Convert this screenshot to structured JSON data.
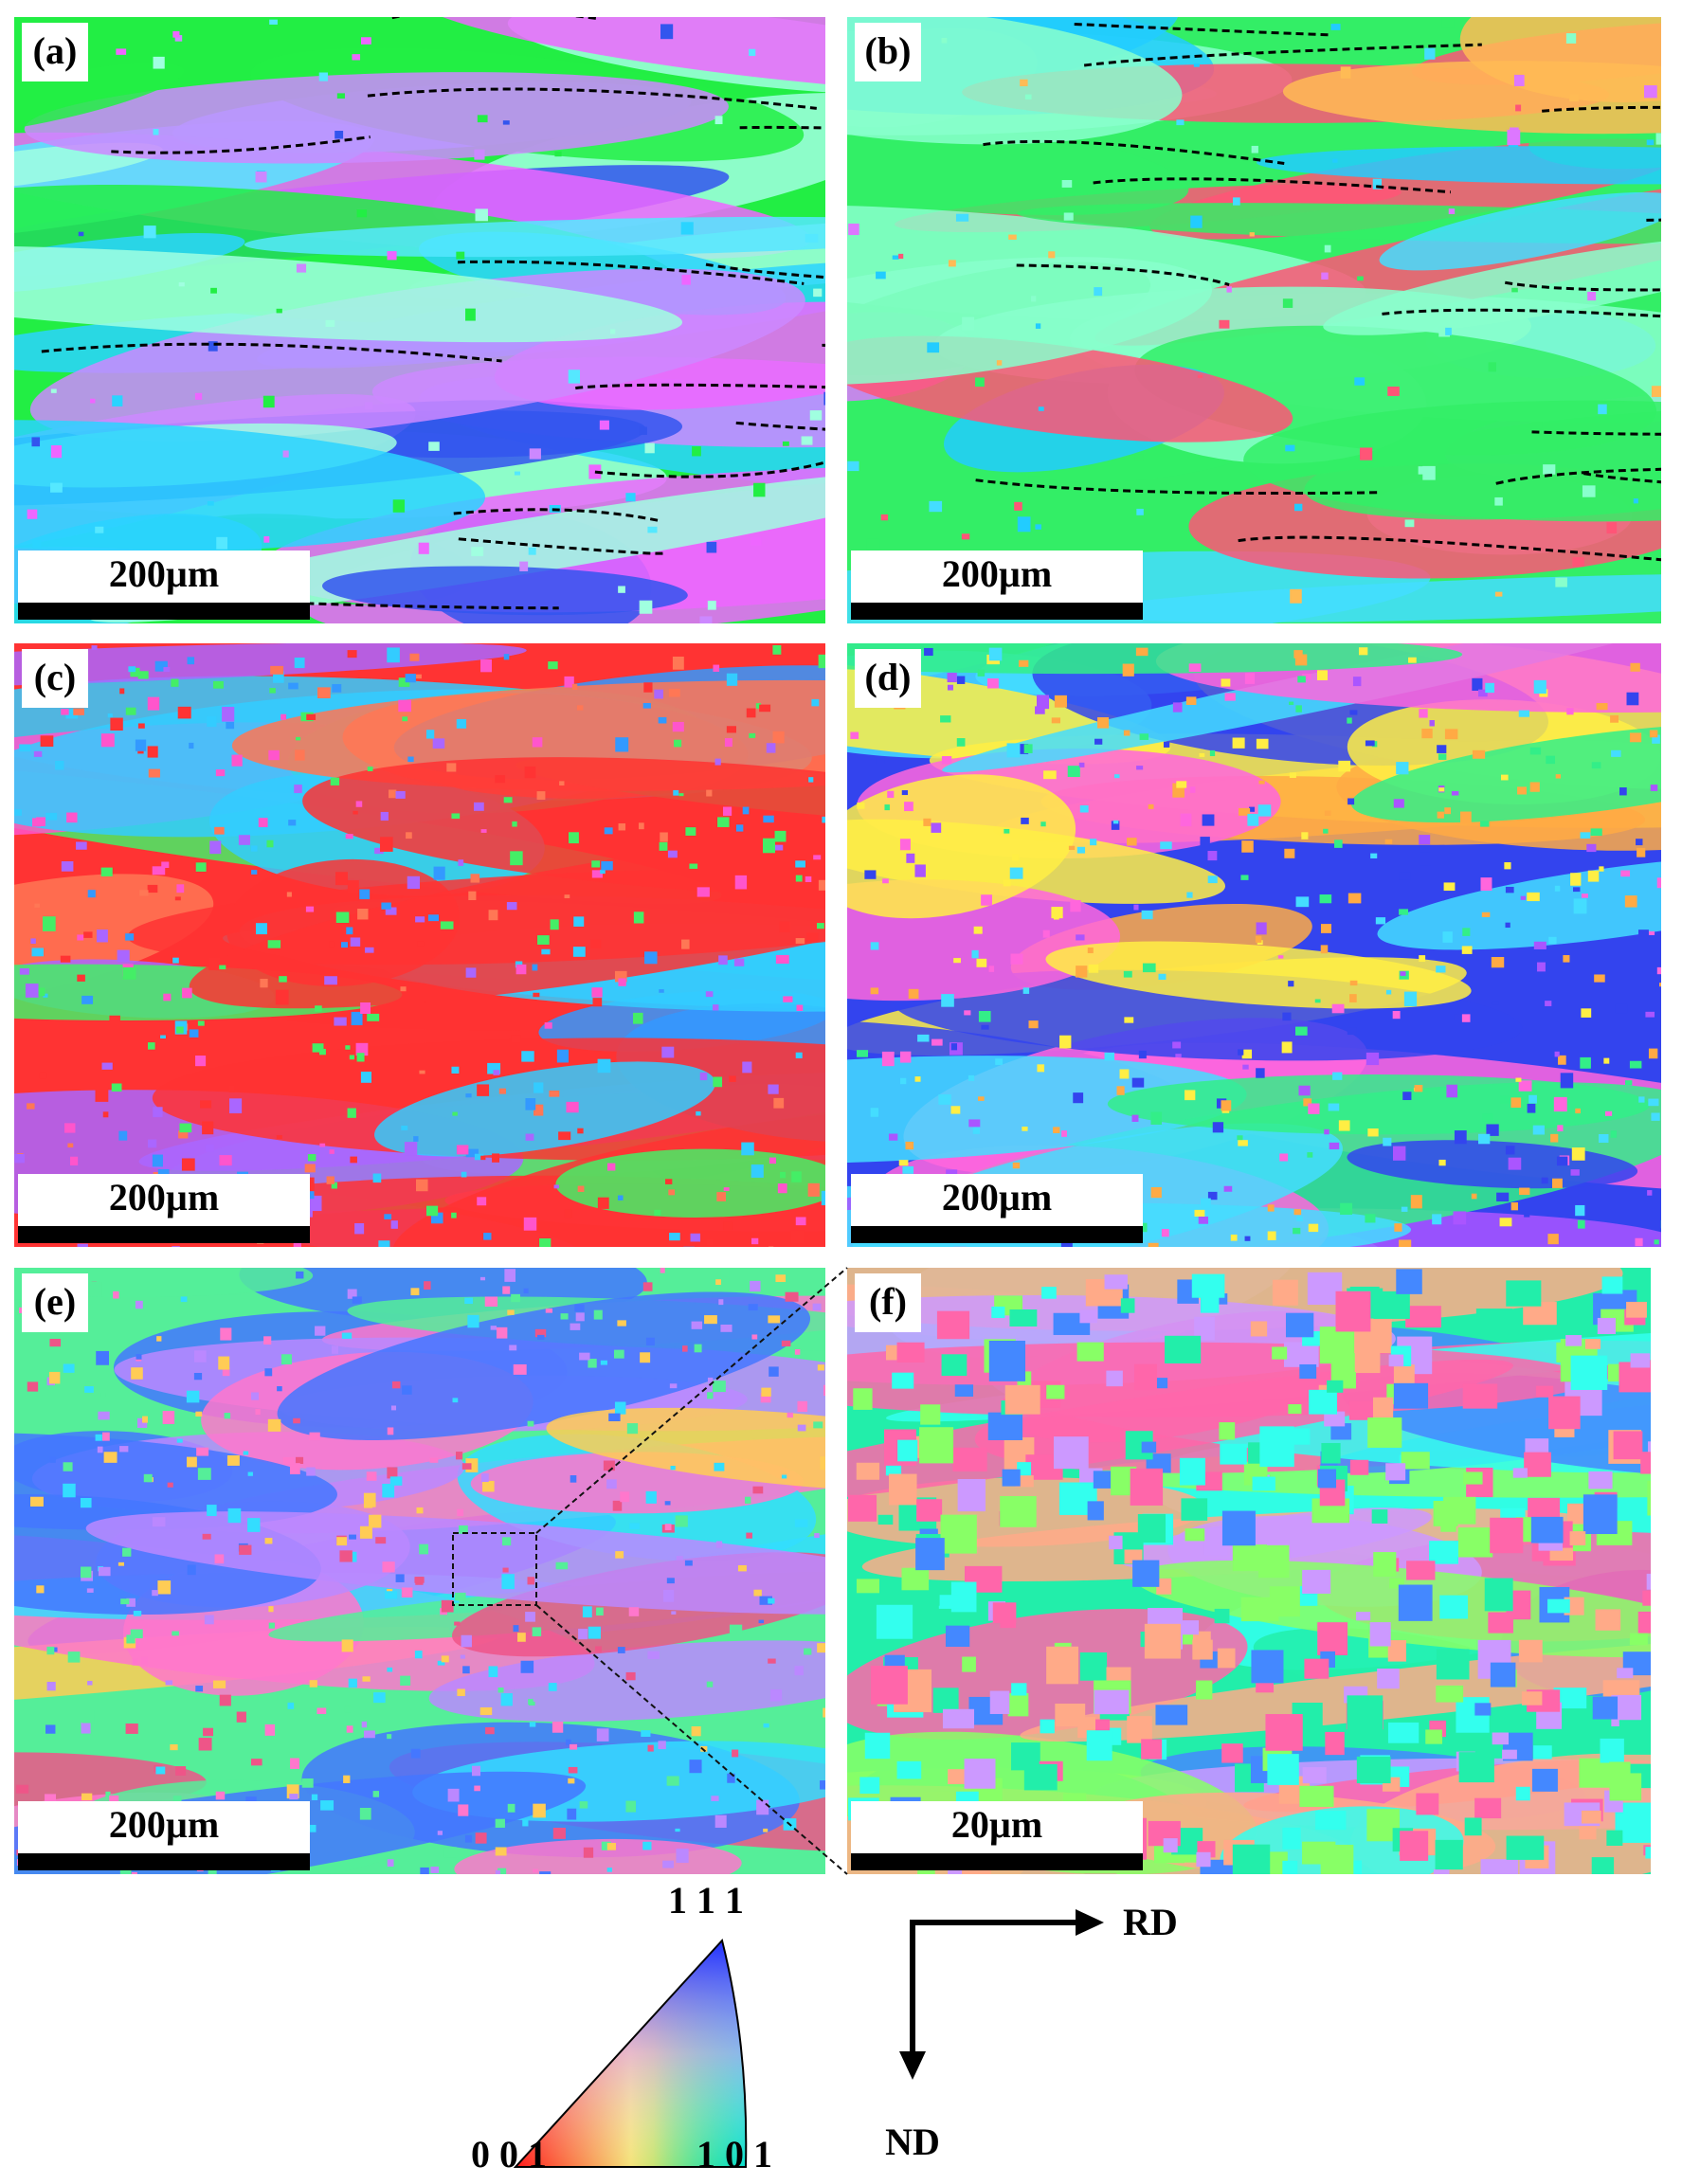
{
  "panels": [
    {
      "label": "(a)",
      "scale_bar": "200µm"
    },
    {
      "label": "(b)",
      "scale_bar": "200µm"
    },
    {
      "label": "(c)",
      "scale_bar": "200µm"
    },
    {
      "label": "(d)",
      "scale_bar": "200µm"
    },
    {
      "label": "(e)",
      "scale_bar": "200µm"
    },
    {
      "label": "(f)",
      "scale_bar": "20µm"
    }
  ],
  "legend": {
    "top": "1 1 1",
    "bottom_left": "0 0 1",
    "bottom_right": "1 0 1"
  },
  "axes": {
    "x": "RD",
    "y": "ND"
  }
}
